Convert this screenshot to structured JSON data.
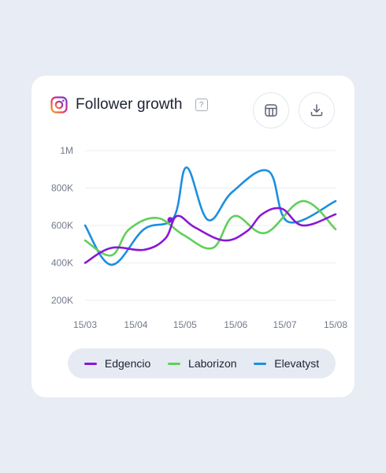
{
  "header": {
    "title": "Follower growth",
    "help_glyph": "?",
    "icons": [
      "instagram-icon",
      "help-icon",
      "table-icon",
      "download-icon"
    ]
  },
  "colors": {
    "Edgencio": "#8a17d6",
    "Laborizon": "#5fd05a",
    "Elevatyst": "#1c8fe0",
    "grid": "#e9ecf2",
    "axis_text": "#737a8c"
  },
  "chart_data": {
    "type": "line",
    "title": "Follower growth",
    "xlabel": "",
    "ylabel": "",
    "x_ticks": [
      "15/03",
      "15/04",
      "15/05",
      "15/06",
      "15/07",
      "15/08"
    ],
    "y_ticks": [
      "200K",
      "400K",
      "600K",
      "800K",
      "1M"
    ],
    "ylim": [
      150000,
      1000000
    ],
    "grid": true,
    "legend_position": "bottom",
    "highlight_point": {
      "series": "Edgencio",
      "x": "15/05",
      "y": 630000
    },
    "series": [
      {
        "name": "Edgencio",
        "points": [
          [
            "2024-03-15",
            400000
          ],
          [
            "2024-03-31",
            480000
          ],
          [
            "2024-04-20",
            470000
          ],
          [
            "2024-05-03",
            530000
          ],
          [
            "2024-05-10",
            650000
          ],
          [
            "2024-05-21",
            590000
          ],
          [
            "2024-06-08",
            520000
          ],
          [
            "2024-06-22",
            570000
          ],
          [
            "2024-07-01",
            660000
          ],
          [
            "2024-07-13",
            690000
          ],
          [
            "2024-07-26",
            600000
          ],
          [
            "2024-08-15",
            660000
          ]
        ]
      },
      {
        "name": "Laborizon",
        "points": [
          [
            "2024-03-15",
            520000
          ],
          [
            "2024-03-31",
            440000
          ],
          [
            "2024-04-11",
            580000
          ],
          [
            "2024-04-28",
            640000
          ],
          [
            "2024-05-14",
            550000
          ],
          [
            "2024-06-01",
            480000
          ],
          [
            "2024-06-14",
            650000
          ],
          [
            "2024-07-03",
            560000
          ],
          [
            "2024-07-26",
            730000
          ],
          [
            "2024-08-15",
            580000
          ]
        ]
      },
      {
        "name": "Elevatyst",
        "points": [
          [
            "2024-03-15",
            600000
          ],
          [
            "2024-03-31",
            390000
          ],
          [
            "2024-04-20",
            580000
          ],
          [
            "2024-05-08",
            640000
          ],
          [
            "2024-05-16",
            910000
          ],
          [
            "2024-05-29",
            630000
          ],
          [
            "2024-06-13",
            780000
          ],
          [
            "2024-07-05",
            890000
          ],
          [
            "2024-07-17",
            620000
          ],
          [
            "2024-08-15",
            730000
          ]
        ]
      }
    ]
  }
}
